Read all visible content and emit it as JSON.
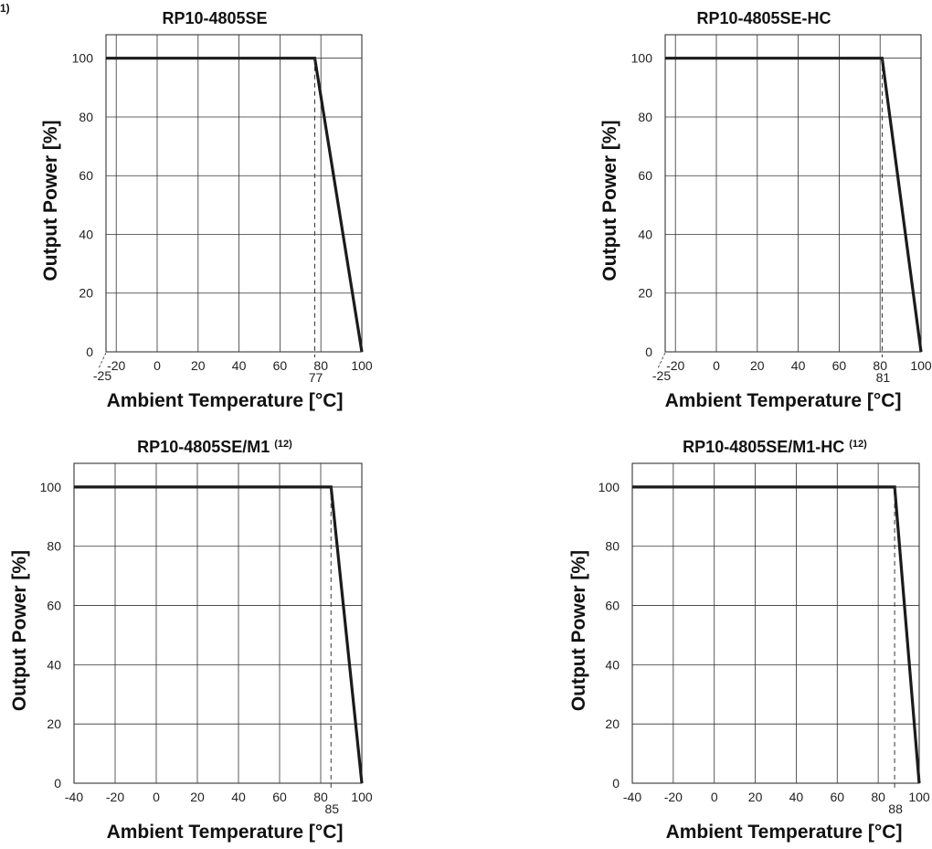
{
  "page": {
    "corner_note": "1)"
  },
  "chart_data": [
    {
      "type": "line",
      "title": "RP10-4805SE",
      "title_suffix": "",
      "xlabel": "Ambient Temperature [°C]",
      "ylabel": "Output Power [%]",
      "xlim": [
        -25,
        100
      ],
      "ylim": [
        0,
        100
      ],
      "x_ticks": [
        "-20",
        "0",
        "20",
        "40",
        "60",
        "80",
        "100"
      ],
      "y_ticks": [
        "0",
        "20",
        "40",
        "60",
        "80",
        "100"
      ],
      "x_start_label": "-25",
      "knee_label": "77",
      "series": [
        {
          "x": [
            -25,
            77,
            100
          ],
          "y": [
            100,
            100,
            0
          ]
        }
      ],
      "grid": true,
      "legend": "none"
    },
    {
      "type": "line",
      "title": "RP10-4805SE-HC",
      "title_suffix": "",
      "xlabel": "Ambient Temperature [°C]",
      "ylabel": "Output Power [%]",
      "xlim": [
        -25,
        100
      ],
      "ylim": [
        0,
        100
      ],
      "x_ticks": [
        "-20",
        "0",
        "20",
        "40",
        "60",
        "80",
        "100"
      ],
      "y_ticks": [
        "0",
        "20",
        "40",
        "60",
        "80",
        "100"
      ],
      "x_start_label": "-25",
      "knee_label": "81",
      "series": [
        {
          "x": [
            -25,
            81,
            100
          ],
          "y": [
            100,
            100,
            0
          ]
        }
      ],
      "grid": true,
      "legend": "none"
    },
    {
      "type": "line",
      "title": "RP10-4805SE/M1",
      "title_suffix": "(12)",
      "xlabel": "Ambient Temperature [°C]",
      "ylabel": "Output Power [%]",
      "xlim": [
        -40,
        100
      ],
      "ylim": [
        0,
        100
      ],
      "x_ticks": [
        "-40",
        "-20",
        "0",
        "20",
        "40",
        "60",
        "80",
        "100"
      ],
      "y_ticks": [
        "0",
        "20",
        "40",
        "60",
        "80",
        "100"
      ],
      "x_start_label": "",
      "knee_label": "85",
      "series": [
        {
          "x": [
            -40,
            85,
            100
          ],
          "y": [
            100,
            100,
            0
          ]
        }
      ],
      "grid": true,
      "legend": "none"
    },
    {
      "type": "line",
      "title": "RP10-4805SE/M1-HC",
      "title_suffix": "(12)",
      "xlabel": "Ambient Temperature [°C]",
      "ylabel": "Output Power [%]",
      "xlim": [
        -40,
        100
      ],
      "ylim": [
        0,
        100
      ],
      "x_ticks": [
        "-40",
        "-20",
        "0",
        "20",
        "40",
        "60",
        "80",
        "100"
      ],
      "y_ticks": [
        "0",
        "20",
        "40",
        "60",
        "80",
        "100"
      ],
      "x_start_label": "",
      "knee_label": "88",
      "series": [
        {
          "x": [
            -40,
            88,
            100
          ],
          "y": [
            100,
            100,
            0
          ]
        }
      ],
      "grid": true,
      "legend": "none"
    }
  ]
}
